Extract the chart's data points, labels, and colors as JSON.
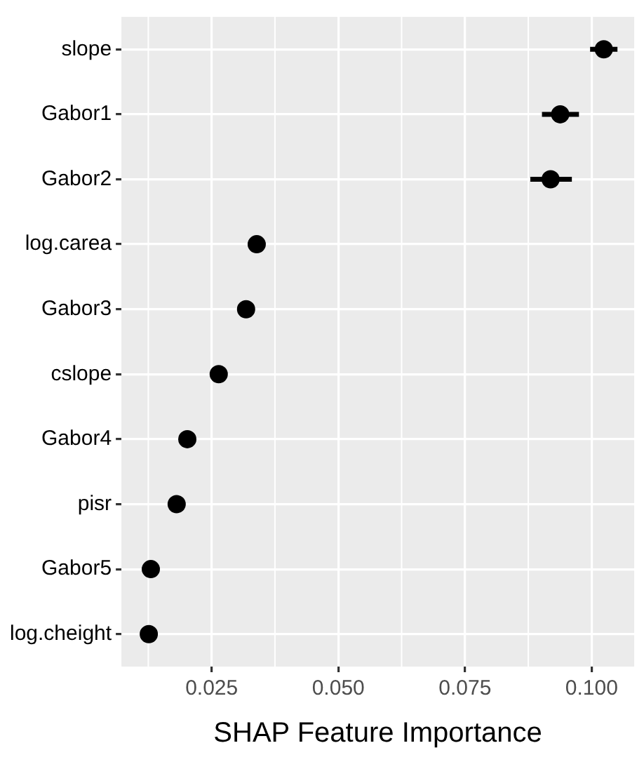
{
  "chart_data": {
    "type": "scatter",
    "orientation": "horizontal",
    "xlabel": "SHAP Feature Importance",
    "categories": [
      "slope",
      "Gabor1",
      "Gabor2",
      "log.carea",
      "Gabor3",
      "cslope",
      "Gabor4",
      "pisr",
      "Gabor5",
      "log.cheight"
    ],
    "values": [
      0.1024,
      0.0938,
      0.0919,
      0.0339,
      0.0318,
      0.0264,
      0.0202,
      0.0181,
      0.013,
      0.0126
    ],
    "errors": [
      [
        0.0997,
        0.1051
      ],
      [
        0.0902,
        0.0975
      ],
      [
        0.0879,
        0.0961
      ],
      null,
      null,
      null,
      null,
      null,
      null,
      null
    ],
    "color": "#000000",
    "marker": "circle",
    "xlim": [
      0.0072,
      0.1084
    ],
    "xticks": [
      {
        "value": 0.025,
        "label": "0.025"
      },
      {
        "value": 0.05,
        "label": "0.050"
      },
      {
        "value": 0.075,
        "label": "0.075"
      },
      {
        "value": 0.1,
        "label": "0.100"
      }
    ],
    "grid": true,
    "legend": false
  }
}
